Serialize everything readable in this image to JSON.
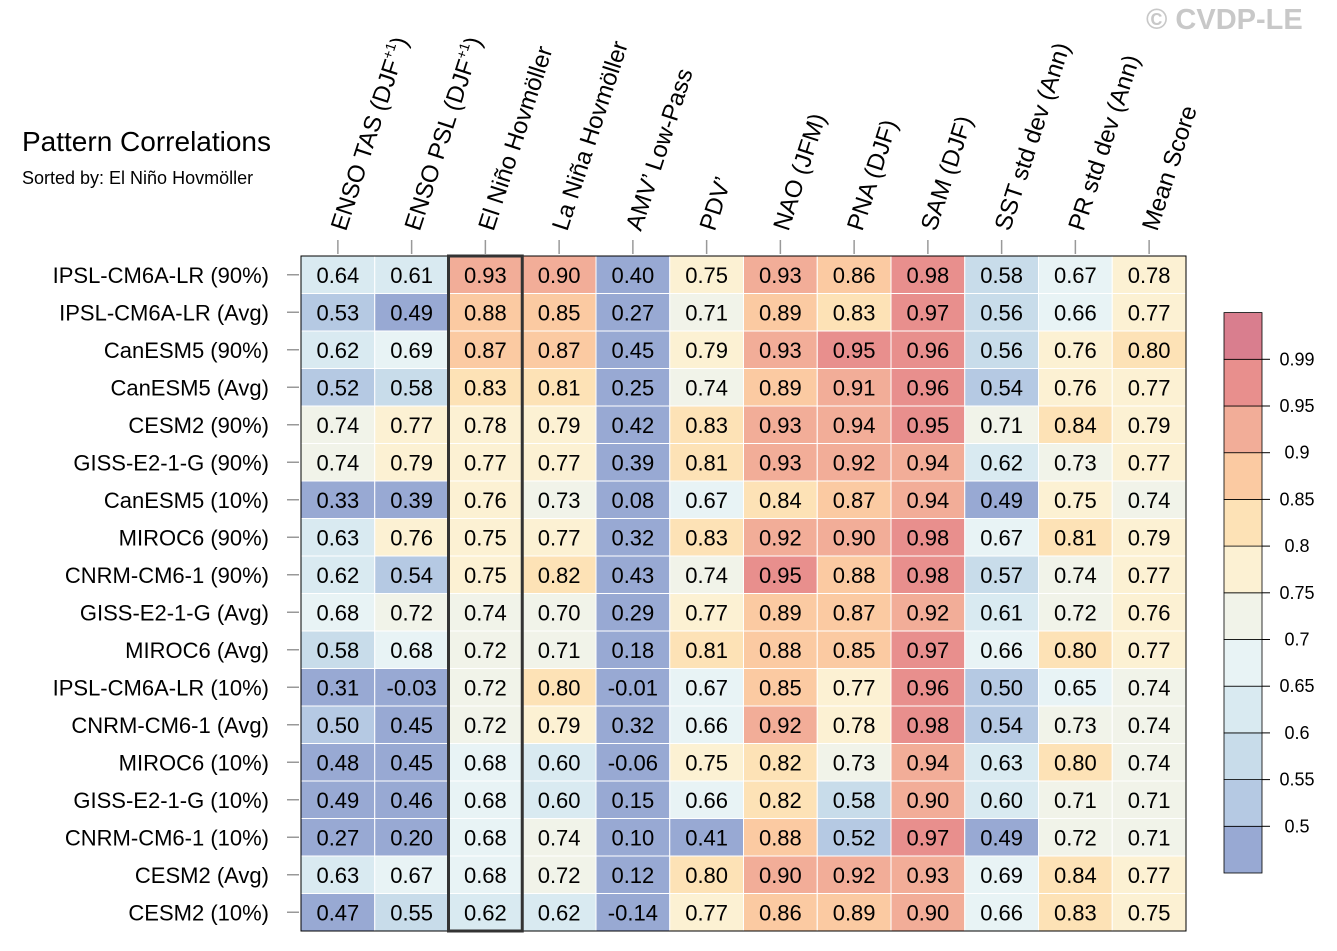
{
  "chart_data": {
    "type": "heatmap",
    "title": "Pattern Correlations",
    "subtitle": "Sorted by: El Niño Hovmöller",
    "watermark": "© CVDP-LE",
    "highlight_column": "El Niño Hovmöller",
    "columns": [
      {
        "text": "ENSO TAS (DJF",
        "sup": "+1",
        "tail": ")"
      },
      {
        "text": "ENSO PSL (DJF",
        "sup": "+1",
        "tail": ")"
      },
      {
        "text": "El Niño Hovmöller",
        "sup": "",
        "tail": ""
      },
      {
        "text": "La Niña Hovmöller",
        "sup": "",
        "tail": ""
      },
      {
        "text": "AMV’ Low-Pass",
        "sup": "",
        "tail": ""
      },
      {
        "text": "PDV’",
        "sup": "",
        "tail": ""
      },
      {
        "text": "NAO (JFM)",
        "sup": "",
        "tail": ""
      },
      {
        "text": "PNA (DJF)",
        "sup": "",
        "tail": ""
      },
      {
        "text": "SAM (DJF)",
        "sup": "",
        "tail": ""
      },
      {
        "text": "SST std dev (Ann)",
        "sup": "",
        "tail": ""
      },
      {
        "text": "PR std dev (Ann)",
        "sup": "",
        "tail": ""
      },
      {
        "text": "Mean Score",
        "sup": "",
        "tail": ""
      }
    ],
    "rows": [
      "IPSL-CM6A-LR (90%)",
      "IPSL-CM6A-LR (Avg)",
      "CanESM5 (90%)",
      "CanESM5 (Avg)",
      "CESM2 (90%)",
      "GISS-E2-1-G (90%)",
      "CanESM5 (10%)",
      "MIROC6 (90%)",
      "CNRM-CM6-1 (90%)",
      "GISS-E2-1-G (Avg)",
      "MIROC6 (Avg)",
      "IPSL-CM6A-LR (10%)",
      "CNRM-CM6-1 (Avg)",
      "MIROC6 (10%)",
      "GISS-E2-1-G (10%)",
      "CNRM-CM6-1 (10%)",
      "CESM2 (Avg)",
      "CESM2 (10%)"
    ],
    "values": [
      [
        "0.64",
        "0.61",
        "0.93",
        "0.90",
        "0.40",
        "0.75",
        "0.93",
        "0.86",
        "0.98",
        "0.58",
        "0.67",
        "0.78"
      ],
      [
        "0.53",
        "0.49",
        "0.88",
        "0.85",
        "0.27",
        "0.71",
        "0.89",
        "0.83",
        "0.97",
        "0.56",
        "0.66",
        "0.77"
      ],
      [
        "0.62",
        "0.69",
        "0.87",
        "0.87",
        "0.45",
        "0.79",
        "0.93",
        "0.95",
        "0.96",
        "0.56",
        "0.76",
        "0.80"
      ],
      [
        "0.52",
        "0.58",
        "0.83",
        "0.81",
        "0.25",
        "0.74",
        "0.89",
        "0.91",
        "0.96",
        "0.54",
        "0.76",
        "0.77"
      ],
      [
        "0.74",
        "0.77",
        "0.78",
        "0.79",
        "0.42",
        "0.83",
        "0.93",
        "0.94",
        "0.95",
        "0.71",
        "0.84",
        "0.79"
      ],
      [
        "0.74",
        "0.79",
        "0.77",
        "0.77",
        "0.39",
        "0.81",
        "0.93",
        "0.92",
        "0.94",
        "0.62",
        "0.73",
        "0.77"
      ],
      [
        "0.33",
        "0.39",
        "0.76",
        "0.73",
        "0.08",
        "0.67",
        "0.84",
        "0.87",
        "0.94",
        "0.49",
        "0.75",
        "0.74"
      ],
      [
        "0.63",
        "0.76",
        "0.75",
        "0.77",
        "0.32",
        "0.83",
        "0.92",
        "0.90",
        "0.98",
        "0.67",
        "0.81",
        "0.79"
      ],
      [
        "0.62",
        "0.54",
        "0.75",
        "0.82",
        "0.43",
        "0.74",
        "0.95",
        "0.88",
        "0.98",
        "0.57",
        "0.74",
        "0.77"
      ],
      [
        "0.68",
        "0.72",
        "0.74",
        "0.70",
        "0.29",
        "0.77",
        "0.89",
        "0.87",
        "0.92",
        "0.61",
        "0.72",
        "0.76"
      ],
      [
        "0.58",
        "0.68",
        "0.72",
        "0.71",
        "0.18",
        "0.81",
        "0.88",
        "0.85",
        "0.97",
        "0.66",
        "0.80",
        "0.77"
      ],
      [
        "0.31",
        "-0.03",
        "0.72",
        "0.80",
        "-0.01",
        "0.67",
        "0.85",
        "0.77",
        "0.96",
        "0.50",
        "0.65",
        "0.74"
      ],
      [
        "0.50",
        "0.45",
        "0.72",
        "0.79",
        "0.32",
        "0.66",
        "0.92",
        "0.78",
        "0.98",
        "0.54",
        "0.73",
        "0.74"
      ],
      [
        "0.48",
        "0.45",
        "0.68",
        "0.60",
        "-0.06",
        "0.75",
        "0.82",
        "0.73",
        "0.94",
        "0.63",
        "0.80",
        "0.74"
      ],
      [
        "0.49",
        "0.46",
        "0.68",
        "0.60",
        "0.15",
        "0.66",
        "0.82",
        "0.58",
        "0.90",
        "0.60",
        "0.71",
        "0.71"
      ],
      [
        "0.27",
        "0.20",
        "0.68",
        "0.74",
        "0.10",
        "0.41",
        "0.88",
        "0.52",
        "0.97",
        "0.49",
        "0.72",
        "0.71"
      ],
      [
        "0.63",
        "0.67",
        "0.68",
        "0.72",
        "0.12",
        "0.80",
        "0.90",
        "0.92",
        "0.93",
        "0.69",
        "0.84",
        "0.77"
      ],
      [
        "0.47",
        "0.55",
        "0.62",
        "0.62",
        "-0.14",
        "0.77",
        "0.86",
        "0.89",
        "0.90",
        "0.66",
        "0.83",
        "0.75"
      ]
    ],
    "colorbar": {
      "levels": [
        0.5,
        0.55,
        0.6,
        0.65,
        0.7,
        0.75,
        0.8,
        0.85,
        0.9,
        0.95,
        0.99
      ],
      "labels": [
        "0.5",
        "0.55",
        "0.6",
        "0.65",
        "0.7",
        "0.75",
        "0.8",
        "0.85",
        "0.9",
        "0.95",
        "0.99"
      ],
      "colors": [
        "#98a9d3",
        "#b5c9e3",
        "#c8dcea",
        "#d9eaf1",
        "#e8f3f5",
        "#f1f3e9",
        "#fcf1d3",
        "#fde2b6",
        "#fbcaa2",
        "#f2ad98",
        "#e88f8d",
        "#d97e8e"
      ]
    }
  }
}
